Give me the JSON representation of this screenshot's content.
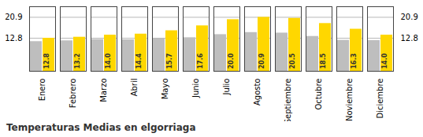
{
  "chart_data": {
    "type": "bar",
    "title": "Temperaturas Medias en elgorriaga",
    "categories": [
      "Enero",
      "Febrero",
      "Marzo",
      "Abril",
      "Mayo",
      "Junio",
      "Julio",
      "Agosto",
      "Septiembre",
      "Octubre",
      "Noviembre",
      "Diciembre"
    ],
    "series": [
      {
        "color": "#BEBEBE",
        "values": [
          11.5,
          11.8,
          12.3,
          12.2,
          12.5,
          13.0,
          14.2,
          15.0,
          14.8,
          13.5,
          12.0,
          11.9
        ]
      },
      {
        "color": "#FFD700",
        "values": [
          12.8,
          13.2,
          14.0,
          14.4,
          15.7,
          17.6,
          20.0,
          20.9,
          20.5,
          18.5,
          16.3,
          14.0
        ],
        "value_labels": [
          "12.8",
          "13.2",
          "14.0",
          "14.4",
          "15.7",
          "17.6",
          "20.0",
          "20.9",
          "20.5",
          "18.5",
          "16.3",
          "14.0"
        ],
        "data_labels": true
      }
    ],
    "ylim": [
      0,
      25.0
    ],
    "yticks": [
      12.8,
      20.9
    ],
    "grid": true
  }
}
